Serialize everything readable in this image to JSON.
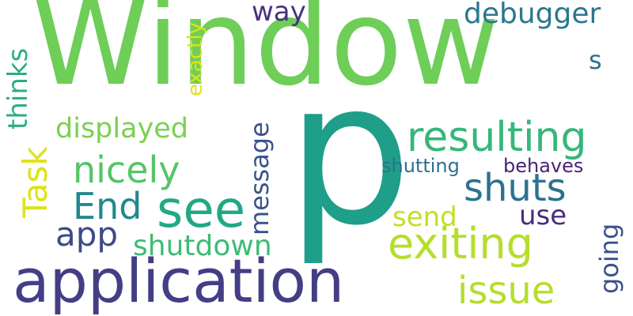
{
  "words": [
    {
      "text": "Window",
      "color": "#6ece58"
    },
    {
      "text": "p",
      "color": "#1f9e89"
    },
    {
      "text": "application",
      "color": "#433e85"
    },
    {
      "text": "see",
      "color": "#22a884"
    },
    {
      "text": "exiting",
      "color": "#b5de2b"
    },
    {
      "text": "resulting",
      "color": "#35b779"
    },
    {
      "text": "shuts",
      "color": "#2c728e"
    },
    {
      "text": "issue",
      "color": "#b5de2b"
    },
    {
      "text": "nicely",
      "color": "#54c568"
    },
    {
      "text": "End",
      "color": "#23888e"
    },
    {
      "text": "Task",
      "color": "#dde318"
    },
    {
      "text": "app",
      "color": "#3e4a89"
    },
    {
      "text": "shutdown",
      "color": "#3dbc74"
    },
    {
      "text": "displayed",
      "color": "#7ad151"
    },
    {
      "text": "debugger",
      "color": "#2a788e"
    },
    {
      "text": "message",
      "color": "#3b528b"
    },
    {
      "text": "thinks",
      "color": "#29af7f"
    },
    {
      "text": "exactly",
      "color": "#dde318"
    },
    {
      "text": "way",
      "color": "#46327e"
    },
    {
      "text": "s",
      "color": "#2c728e"
    },
    {
      "text": "shutting",
      "color": "#2d708e"
    },
    {
      "text": "behaves",
      "color": "#482475"
    },
    {
      "text": "send",
      "color": "#c2df23"
    },
    {
      "text": "use",
      "color": "#472d7b"
    },
    {
      "text": "going",
      "color": "#3b528b"
    }
  ]
}
